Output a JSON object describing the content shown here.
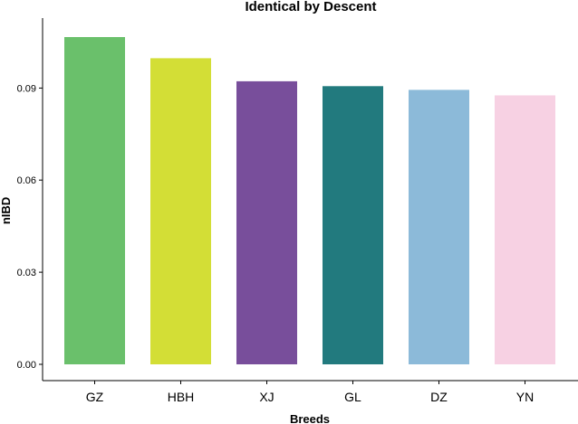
{
  "chart_data": {
    "type": "bar",
    "title": "Identical by Descent",
    "xlabel": "Breeds",
    "ylabel": "nIBD",
    "categories": [
      "GZ",
      "HBH",
      "XJ",
      "GL",
      "DZ",
      "YN"
    ],
    "values": [
      0.1066,
      0.0997,
      0.0922,
      0.0906,
      0.0894,
      0.0876
    ],
    "colors": [
      "#6ac06b",
      "#d3de36",
      "#784e9b",
      "#227a7e",
      "#8cbad9",
      "#f7d1e3"
    ],
    "yticks": [
      "0.00",
      "0.03",
      "0.06",
      "0.09"
    ],
    "ytick_values": [
      0,
      0.03,
      0.06,
      0.09
    ],
    "ylim": [
      0,
      0.1066
    ],
    "grid": false,
    "legend": "none"
  }
}
